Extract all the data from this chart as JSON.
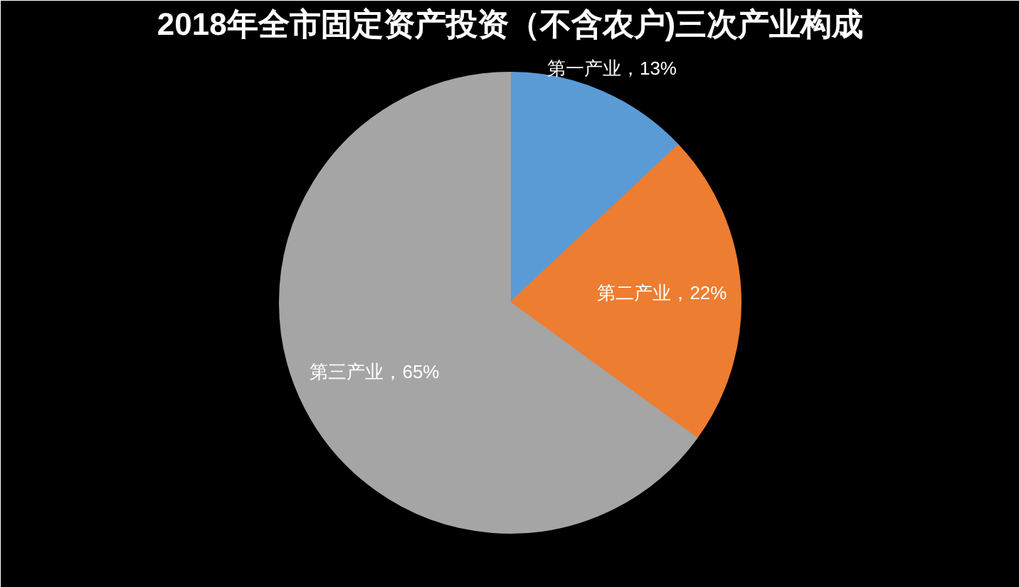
{
  "chart_data": {
    "type": "pie",
    "title": "2018年全市固定资产投资（不含农户)三次产业构成",
    "categories": [
      "第一产业",
      "第二产业",
      "第三产业"
    ],
    "values": [
      13,
      22,
      65
    ],
    "colors": [
      "#5b9bd5",
      "#ed7d31",
      "#a5a5a5"
    ],
    "value_labels": [
      "，13%",
      "，22%",
      "，65%"
    ]
  }
}
